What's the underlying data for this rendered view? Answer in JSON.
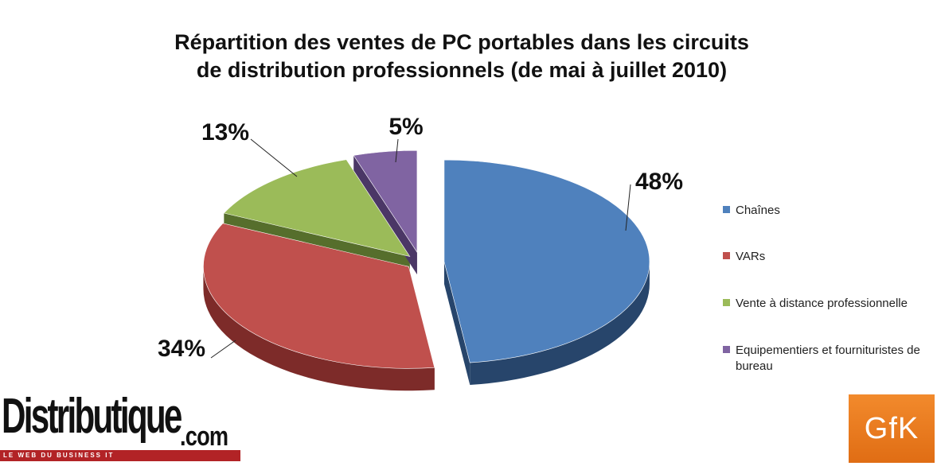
{
  "chart_data": {
    "type": "pie",
    "title": "Répartition des ventes de PC portables dans les circuits de distribution professionnels (de mai à juillet 2010)",
    "title_lines": [
      "Répartition des ventes de PC portables dans les circuits",
      "de distribution professionnels (de mai à juillet 2010)"
    ],
    "style": "3d-exploded",
    "legend_position": "right",
    "slices": [
      {
        "label": "Chaînes",
        "value": 48,
        "display": "48%",
        "color": "#4f81bd",
        "dark": "#27456b"
      },
      {
        "label": "VARs",
        "value": 34,
        "display": "34%",
        "color": "#c0504d",
        "dark": "#7d2b29"
      },
      {
        "label": "Vente à distance professionnelle",
        "value": 13,
        "display": "13%",
        "color": "#9bbb59",
        "dark": "#566e2c"
      },
      {
        "label": "Equipementiers et fournituristes de bureau",
        "value": 5,
        "display": "5%",
        "color": "#8064a2",
        "dark": "#4b3766"
      }
    ]
  },
  "logos": {
    "left_main": "Distributique",
    "left_suffix": ".com",
    "left_tagline": "LE WEB DU BUSINESS IT",
    "right": "GfK"
  }
}
